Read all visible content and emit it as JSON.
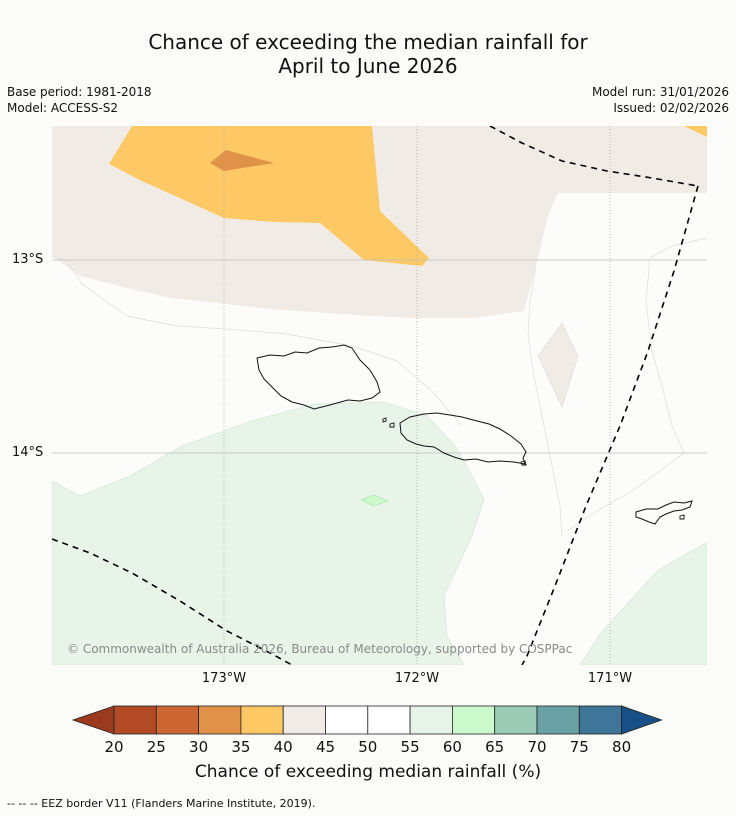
{
  "title_line1": "Chance of exceeding the median rainfall for",
  "title_line2": "April to June 2026",
  "base_period": "Base period: 1981-2018",
  "model": "Model: ACCESS-S2",
  "model_run": "Model run: 31/01/2026",
  "issued": "Issued: 02/02/2026",
  "lat_ticks": [
    "13°S",
    "14°S"
  ],
  "lon_ticks": [
    "173°W",
    "172°W",
    "171°W"
  ],
  "copyright": "© Commonwealth of Australia 2026, Bureau of Meteorology, supported by COSPPac",
  "colorbar": {
    "title": "Chance of exceeding median rainfall (%)",
    "ticks": [
      "20",
      "25",
      "30",
      "35",
      "40",
      "45",
      "50",
      "55",
      "60",
      "65",
      "70",
      "75",
      "80"
    ],
    "under_color": "#9b3a1c",
    "over_color": "#184f86",
    "colors": [
      "#b24a26",
      "#cc6633",
      "#e09248",
      "#fec965",
      "#f1ebe6",
      "#ffffff",
      "#ffffff",
      "#e8f4e8",
      "#ccfacc",
      "#9ccbb5",
      "#6ba0a5",
      "#3f7598"
    ]
  },
  "footnote": "--  --  -- EEZ border V11 (Flanders Marine Institute, 2019)."
}
